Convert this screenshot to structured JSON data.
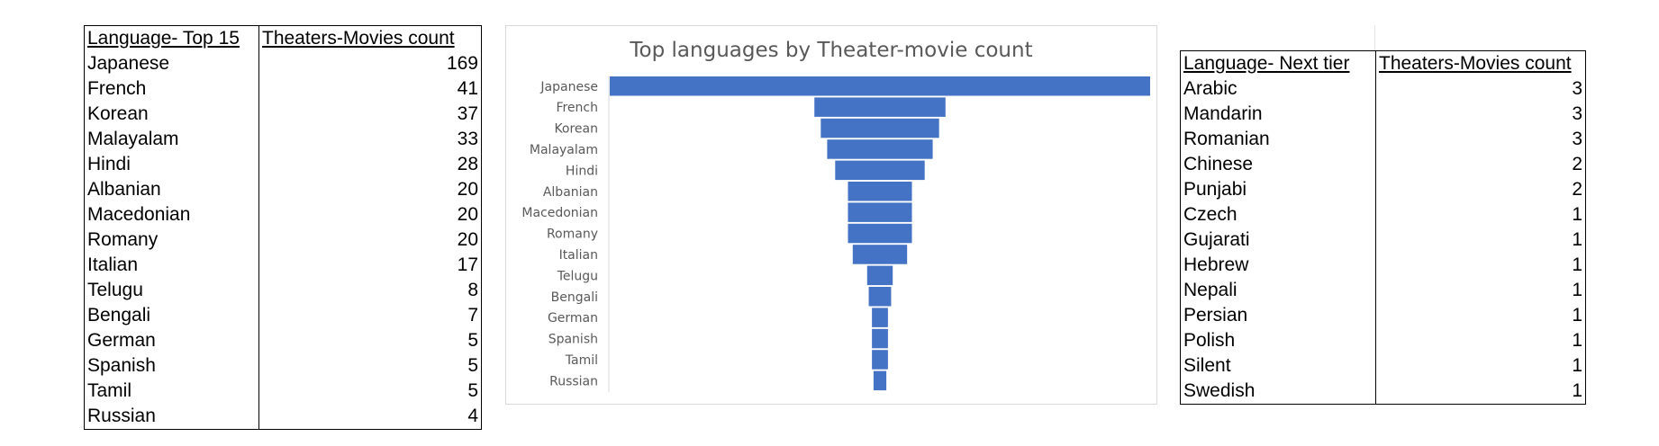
{
  "left_table": {
    "header": [
      "Language- Top 15",
      "Theaters-Movies count"
    ],
    "rows": [
      [
        "Japanese",
        "169"
      ],
      [
        "French",
        "41"
      ],
      [
        "Korean",
        "37"
      ],
      [
        "Malayalam",
        "33"
      ],
      [
        "Hindi",
        "28"
      ],
      [
        "Albanian",
        "20"
      ],
      [
        "Macedonian",
        "20"
      ],
      [
        "Romany",
        "20"
      ],
      [
        "Italian",
        "17"
      ],
      [
        "Telugu",
        "8"
      ],
      [
        "Bengali",
        "7"
      ],
      [
        "German",
        "5"
      ],
      [
        "Spanish",
        "5"
      ],
      [
        "Tamil",
        "5"
      ],
      [
        "Russian",
        "4"
      ]
    ]
  },
  "right_table": {
    "header": [
      "Language- Next tier",
      "Theaters-Movies count"
    ],
    "rows": [
      [
        "Arabic",
        "3"
      ],
      [
        "Mandarin",
        "3"
      ],
      [
        "Romanian",
        "3"
      ],
      [
        "Chinese",
        "2"
      ],
      [
        "Punjabi",
        "2"
      ],
      [
        "Czech",
        "1"
      ],
      [
        "Gujarati",
        "1"
      ],
      [
        "Hebrew",
        "1"
      ],
      [
        "Nepali",
        "1"
      ],
      [
        "Persian",
        "1"
      ],
      [
        "Polish",
        "1"
      ],
      [
        "Silent",
        "1"
      ],
      [
        "Swedish",
        "1"
      ]
    ]
  },
  "chart_data": {
    "type": "bar",
    "orientation": "horizontal-funnel",
    "title": "Top languages by Theater-movie count",
    "categories": [
      "Japanese",
      "French",
      "Korean",
      "Malayalam",
      "Hindi",
      "Albanian",
      "Macedonian",
      "Romany",
      "Italian",
      "Telugu",
      "Bengali",
      "German",
      "Spanish",
      "Tamil",
      "Russian"
    ],
    "values": [
      169,
      41,
      37,
      33,
      28,
      20,
      20,
      20,
      17,
      8,
      7,
      5,
      5,
      5,
      4
    ],
    "bar_color": "#4472C4",
    "xlabel": "",
    "ylabel": "",
    "grid": false,
    "legend": "none"
  },
  "colors": {
    "bar": "#4472C4",
    "chart_text": "#595959",
    "chart_border": "#d9d9d9"
  }
}
